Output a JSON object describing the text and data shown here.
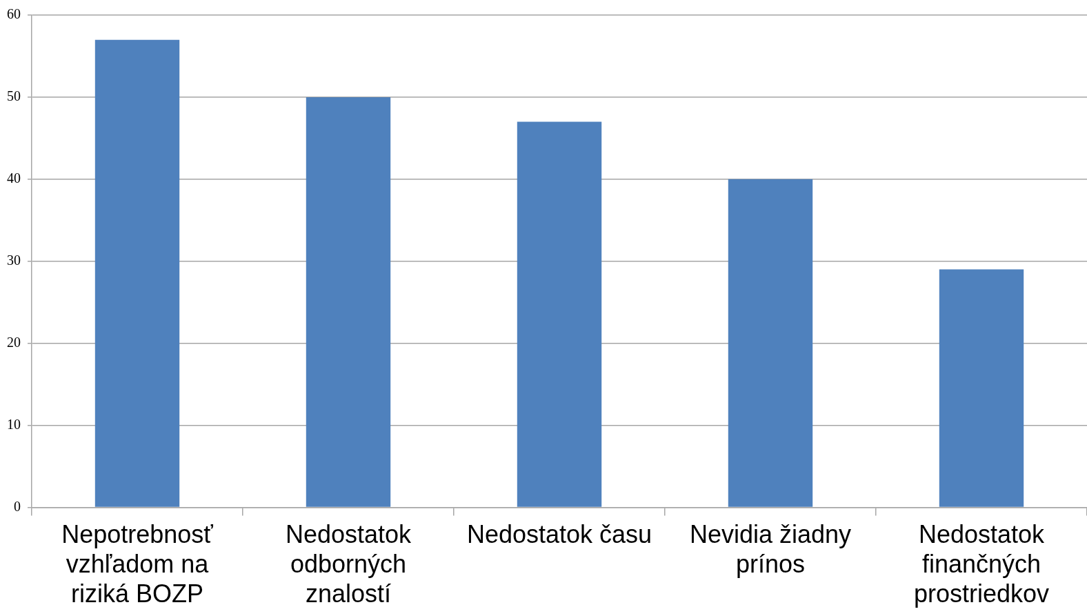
{
  "chart_data": {
    "type": "bar",
    "categories": [
      "Nepotrebnosť vzhľadom na riziká BOZP",
      "Nedostatok odborných znalostí",
      "Nedostatok času",
      "Nevidia žiadny prínos",
      "Nedostatok finančných prostriedkov"
    ],
    "values": [
      57,
      50,
      47,
      40,
      29
    ],
    "color": "#4f81bd",
    "ylim": [
      0,
      60
    ],
    "yticks": [
      0,
      10,
      20,
      30,
      40,
      50,
      60
    ],
    "grid": "y"
  }
}
